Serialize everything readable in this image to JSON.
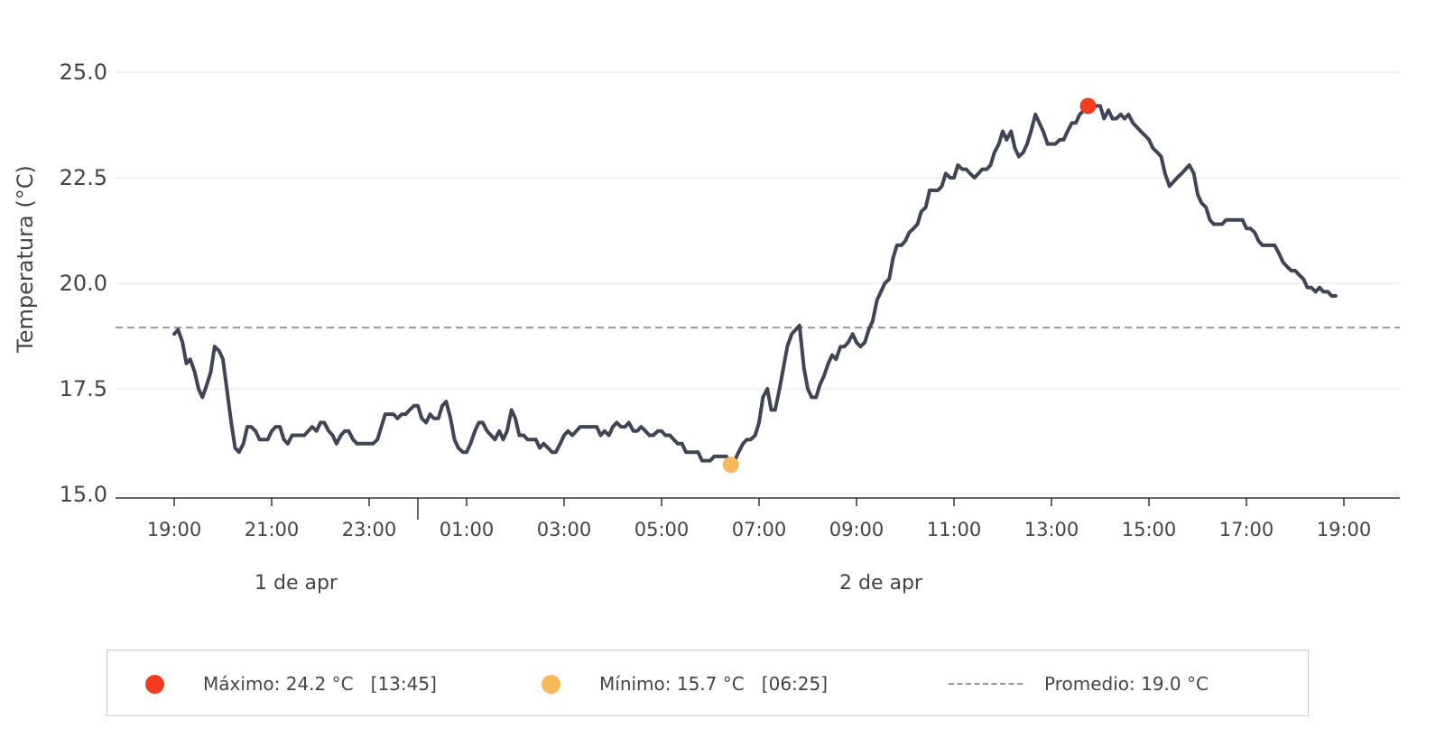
{
  "chart_data": {
    "type": "line",
    "ylabel": "Temperatura (°C)",
    "ylim": [
      15.0,
      25.0
    ],
    "yticks": [
      "15.0",
      "17.5",
      "20.0",
      "22.5",
      "25.0"
    ],
    "xticks": [
      "19:00",
      "21:00",
      "23:00",
      "01:00",
      "03:00",
      "05:00",
      "07:00",
      "09:00",
      "11:00",
      "13:00",
      "15:00",
      "17:00",
      "19:00"
    ],
    "date_labels": [
      "1 de apr",
      "2 de apr"
    ],
    "grid": "horizontal",
    "colors": {
      "line": "#3f4457",
      "max": "#f23b1f",
      "min": "#f8b85c",
      "avg": "#999999"
    },
    "series": [
      {
        "values": [
          [
            0,
            18.8
          ],
          [
            0.08,
            18.9
          ],
          [
            0.17,
            18.6
          ],
          [
            0.25,
            18.1
          ],
          [
            0.33,
            18.2
          ],
          [
            0.42,
            17.9
          ],
          [
            0.5,
            17.5
          ],
          [
            0.58,
            17.3
          ],
          [
            0.67,
            17.6
          ],
          [
            0.75,
            17.9
          ],
          [
            0.83,
            18.5
          ],
          [
            0.92,
            18.4
          ],
          [
            1.0,
            18.2
          ],
          [
            1.08,
            17.5
          ],
          [
            1.17,
            16.7
          ],
          [
            1.25,
            16.1
          ],
          [
            1.33,
            16.0
          ],
          [
            1.42,
            16.2
          ],
          [
            1.5,
            16.6
          ],
          [
            1.58,
            16.6
          ],
          [
            1.67,
            16.5
          ],
          [
            1.75,
            16.3
          ],
          [
            1.83,
            16.3
          ],
          [
            1.92,
            16.3
          ],
          [
            2.0,
            16.5
          ],
          [
            2.08,
            16.6
          ],
          [
            2.17,
            16.6
          ],
          [
            2.25,
            16.3
          ],
          [
            2.33,
            16.2
          ],
          [
            2.42,
            16.4
          ],
          [
            2.5,
            16.4
          ],
          [
            2.58,
            16.4
          ],
          [
            2.67,
            16.4
          ],
          [
            2.75,
            16.5
          ],
          [
            2.83,
            16.6
          ],
          [
            2.92,
            16.5
          ],
          [
            3.0,
            16.7
          ],
          [
            3.08,
            16.7
          ],
          [
            3.17,
            16.5
          ],
          [
            3.25,
            16.4
          ],
          [
            3.33,
            16.2
          ],
          [
            3.42,
            16.4
          ],
          [
            3.5,
            16.5
          ],
          [
            3.58,
            16.5
          ],
          [
            3.67,
            16.3
          ],
          [
            3.75,
            16.2
          ],
          [
            3.83,
            16.2
          ],
          [
            3.92,
            16.2
          ],
          [
            4.0,
            16.2
          ],
          [
            4.08,
            16.2
          ],
          [
            4.17,
            16.3
          ],
          [
            4.25,
            16.6
          ],
          [
            4.33,
            16.9
          ],
          [
            4.42,
            16.9
          ],
          [
            4.5,
            16.9
          ],
          [
            4.58,
            16.8
          ],
          [
            4.67,
            16.9
          ],
          [
            4.75,
            16.9
          ],
          [
            4.83,
            17.0
          ],
          [
            4.92,
            17.1
          ],
          [
            5.0,
            17.1
          ],
          [
            5.08,
            16.8
          ],
          [
            5.17,
            16.7
          ],
          [
            5.25,
            16.9
          ],
          [
            5.33,
            16.8
          ],
          [
            5.42,
            16.8
          ],
          [
            5.5,
            17.1
          ],
          [
            5.58,
            17.2
          ],
          [
            5.67,
            16.8
          ],
          [
            5.75,
            16.3
          ],
          [
            5.83,
            16.1
          ],
          [
            5.92,
            16.0
          ],
          [
            6.0,
            16.0
          ],
          [
            6.08,
            16.2
          ],
          [
            6.17,
            16.5
          ],
          [
            6.25,
            16.7
          ],
          [
            6.33,
            16.7
          ],
          [
            6.42,
            16.5
          ],
          [
            6.5,
            16.4
          ],
          [
            6.58,
            16.3
          ],
          [
            6.67,
            16.5
          ],
          [
            6.75,
            16.3
          ],
          [
            6.83,
            16.5
          ],
          [
            6.92,
            17.0
          ],
          [
            7.0,
            16.8
          ],
          [
            7.08,
            16.4
          ],
          [
            7.17,
            16.4
          ],
          [
            7.25,
            16.3
          ],
          [
            7.33,
            16.3
          ],
          [
            7.42,
            16.3
          ],
          [
            7.5,
            16.1
          ],
          [
            7.58,
            16.2
          ],
          [
            7.67,
            16.1
          ],
          [
            7.75,
            16.0
          ],
          [
            7.83,
            16.0
          ],
          [
            7.92,
            16.2
          ],
          [
            8.0,
            16.4
          ],
          [
            8.08,
            16.5
          ],
          [
            8.17,
            16.4
          ],
          [
            8.25,
            16.5
          ],
          [
            8.33,
            16.6
          ],
          [
            8.42,
            16.6
          ],
          [
            8.5,
            16.6
          ],
          [
            8.58,
            16.6
          ],
          [
            8.67,
            16.6
          ],
          [
            8.75,
            16.4
          ],
          [
            8.83,
            16.5
          ],
          [
            8.92,
            16.4
          ],
          [
            9.0,
            16.6
          ],
          [
            9.08,
            16.7
          ],
          [
            9.17,
            16.6
          ],
          [
            9.25,
            16.6
          ],
          [
            9.33,
            16.7
          ],
          [
            9.42,
            16.5
          ],
          [
            9.5,
            16.5
          ],
          [
            9.58,
            16.6
          ],
          [
            9.67,
            16.5
          ],
          [
            9.75,
            16.4
          ],
          [
            9.83,
            16.4
          ],
          [
            9.92,
            16.5
          ],
          [
            10.0,
            16.5
          ],
          [
            10.08,
            16.4
          ],
          [
            10.17,
            16.4
          ],
          [
            10.25,
            16.3
          ],
          [
            10.33,
            16.2
          ],
          [
            10.42,
            16.2
          ],
          [
            10.5,
            16.0
          ],
          [
            10.58,
            16.0
          ],
          [
            10.67,
            16.0
          ],
          [
            10.75,
            16.0
          ],
          [
            10.83,
            15.8
          ],
          [
            10.92,
            15.8
          ],
          [
            11.0,
            15.8
          ],
          [
            11.08,
            15.9
          ],
          [
            11.17,
            15.9
          ],
          [
            11.25,
            15.9
          ],
          [
            11.33,
            15.9
          ],
          [
            11.42,
            15.7
          ],
          [
            11.5,
            15.8
          ],
          [
            11.58,
            16.0
          ],
          [
            11.67,
            16.2
          ],
          [
            11.75,
            16.3
          ],
          [
            11.83,
            16.3
          ],
          [
            11.92,
            16.4
          ],
          [
            12.0,
            16.7
          ],
          [
            12.08,
            17.3
          ],
          [
            12.17,
            17.5
          ],
          [
            12.25,
            17.0
          ],
          [
            12.33,
            17.0
          ],
          [
            12.42,
            17.5
          ],
          [
            12.5,
            18.0
          ],
          [
            12.58,
            18.5
          ],
          [
            12.67,
            18.8
          ],
          [
            12.75,
            18.9
          ],
          [
            12.83,
            19.0
          ],
          [
            12.92,
            18.0
          ],
          [
            13.0,
            17.5
          ],
          [
            13.08,
            17.3
          ],
          [
            13.17,
            17.3
          ],
          [
            13.25,
            17.6
          ],
          [
            13.33,
            17.8
          ],
          [
            13.42,
            18.1
          ],
          [
            13.5,
            18.3
          ],
          [
            13.58,
            18.2
          ],
          [
            13.67,
            18.5
          ],
          [
            13.75,
            18.5
          ],
          [
            13.83,
            18.6
          ],
          [
            13.92,
            18.8
          ],
          [
            14.0,
            18.6
          ],
          [
            14.08,
            18.5
          ],
          [
            14.17,
            18.6
          ],
          [
            14.25,
            18.9
          ],
          [
            14.33,
            19.1
          ],
          [
            14.42,
            19.6
          ],
          [
            14.5,
            19.8
          ],
          [
            14.58,
            20.0
          ],
          [
            14.67,
            20.1
          ],
          [
            14.75,
            20.6
          ],
          [
            14.83,
            20.9
          ],
          [
            14.92,
            20.9
          ],
          [
            15.0,
            21.0
          ],
          [
            15.08,
            21.2
          ],
          [
            15.17,
            21.3
          ],
          [
            15.25,
            21.4
          ],
          [
            15.33,
            21.7
          ],
          [
            15.42,
            21.8
          ],
          [
            15.5,
            22.2
          ],
          [
            15.58,
            22.2
          ],
          [
            15.67,
            22.2
          ],
          [
            15.75,
            22.3
          ],
          [
            15.83,
            22.6
          ],
          [
            15.92,
            22.5
          ],
          [
            16.0,
            22.5
          ],
          [
            16.08,
            22.8
          ],
          [
            16.17,
            22.7
          ],
          [
            16.25,
            22.7
          ],
          [
            16.33,
            22.6
          ],
          [
            16.42,
            22.5
          ],
          [
            16.5,
            22.6
          ],
          [
            16.58,
            22.7
          ],
          [
            16.67,
            22.7
          ],
          [
            16.75,
            22.8
          ],
          [
            16.83,
            23.1
          ],
          [
            16.92,
            23.3
          ],
          [
            17.0,
            23.6
          ],
          [
            17.08,
            23.4
          ],
          [
            17.17,
            23.6
          ],
          [
            17.25,
            23.2
          ],
          [
            17.33,
            23.0
          ],
          [
            17.42,
            23.1
          ],
          [
            17.5,
            23.3
          ],
          [
            17.58,
            23.6
          ],
          [
            17.67,
            24.0
          ],
          [
            17.75,
            23.8
          ],
          [
            17.83,
            23.6
          ],
          [
            17.92,
            23.3
          ],
          [
            18.0,
            23.3
          ],
          [
            18.08,
            23.3
          ],
          [
            18.17,
            23.4
          ],
          [
            18.25,
            23.4
          ],
          [
            18.33,
            23.6
          ],
          [
            18.42,
            23.8
          ],
          [
            18.5,
            23.8
          ],
          [
            18.58,
            24.0
          ],
          [
            18.67,
            24.1
          ],
          [
            18.75,
            24.2
          ],
          [
            18.83,
            24.2
          ],
          [
            18.92,
            24.2
          ],
          [
            19.0,
            24.2
          ],
          [
            19.08,
            23.9
          ],
          [
            19.17,
            24.1
          ],
          [
            19.25,
            23.9
          ],
          [
            19.33,
            23.9
          ],
          [
            19.42,
            24.0
          ],
          [
            19.5,
            23.9
          ],
          [
            19.58,
            24.0
          ],
          [
            19.67,
            23.8
          ],
          [
            19.75,
            23.7
          ],
          [
            19.83,
            23.6
          ],
          [
            19.92,
            23.5
          ],
          [
            20.0,
            23.4
          ],
          [
            20.08,
            23.2
          ],
          [
            20.17,
            23.1
          ],
          [
            20.25,
            23.0
          ],
          [
            20.33,
            22.6
          ],
          [
            20.42,
            22.3
          ],
          [
            20.5,
            22.4
          ],
          [
            20.58,
            22.5
          ],
          [
            20.67,
            22.6
          ],
          [
            20.75,
            22.7
          ],
          [
            20.83,
            22.8
          ],
          [
            20.92,
            22.6
          ],
          [
            21.0,
            22.1
          ],
          [
            21.08,
            21.9
          ],
          [
            21.17,
            21.8
          ],
          [
            21.25,
            21.5
          ],
          [
            21.33,
            21.4
          ],
          [
            21.42,
            21.4
          ],
          [
            21.5,
            21.4
          ],
          [
            21.58,
            21.5
          ],
          [
            21.67,
            21.5
          ],
          [
            21.75,
            21.5
          ],
          [
            21.83,
            21.5
          ],
          [
            21.92,
            21.5
          ],
          [
            22.0,
            21.3
          ],
          [
            22.08,
            21.3
          ],
          [
            22.17,
            21.2
          ],
          [
            22.25,
            21.0
          ],
          [
            22.33,
            20.9
          ],
          [
            22.42,
            20.9
          ],
          [
            22.5,
            20.9
          ],
          [
            22.58,
            20.9
          ],
          [
            22.67,
            20.7
          ],
          [
            22.75,
            20.5
          ],
          [
            22.83,
            20.4
          ],
          [
            22.92,
            20.3
          ],
          [
            23.0,
            20.3
          ],
          [
            23.08,
            20.2
          ],
          [
            23.17,
            20.1
          ],
          [
            23.25,
            19.9
          ],
          [
            23.33,
            19.9
          ],
          [
            23.42,
            19.8
          ],
          [
            23.5,
            19.9
          ],
          [
            23.58,
            19.8
          ],
          [
            23.67,
            19.8
          ],
          [
            23.75,
            19.7
          ],
          [
            23.83,
            19.7
          ]
        ]
      }
    ],
    "max_point": {
      "x": 18.75,
      "y": 24.2
    },
    "min_point": {
      "x": 11.42,
      "y": 15.7
    },
    "average": 18.95
  },
  "legend": {
    "max_label": "Máximo: 24.2 °C   [13:45]",
    "min_label": "Mínimo: 15.7 °C   [06:25]",
    "avg_label": "Promedio: 19.0 °C"
  }
}
